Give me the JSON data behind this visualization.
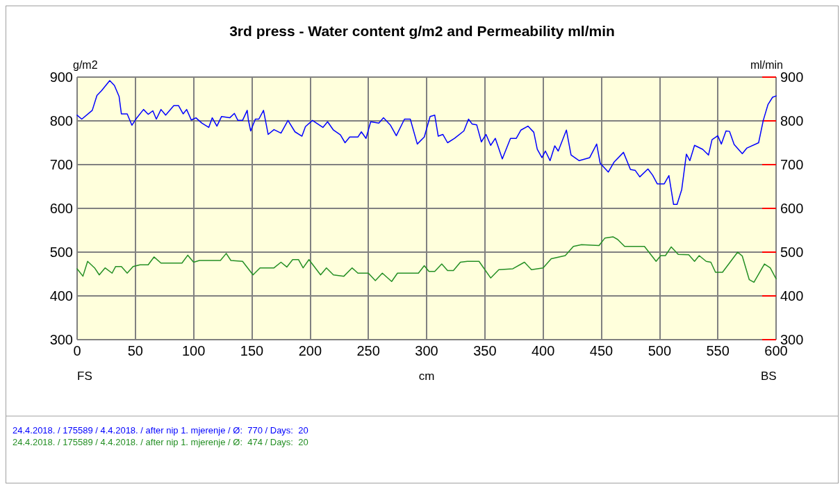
{
  "chart_data": {
    "type": "line",
    "title": "3rd press - Water content g/m2 and Permeability ml/min",
    "xlabel": "cm",
    "ylabel": "g/m2",
    "y2label": "ml/min",
    "annotations": [
      "FS",
      "BS"
    ],
    "xlim": [
      0,
      600
    ],
    "xticks": [
      0,
      50,
      100,
      150,
      200,
      250,
      300,
      350,
      400,
      450,
      500,
      550,
      600
    ],
    "ylim": [
      300,
      900
    ],
    "yticks": [
      300,
      400,
      500,
      600,
      700,
      800,
      900
    ],
    "y2lim": [
      300,
      900
    ],
    "y2ticks": [
      300,
      400,
      500,
      600,
      700,
      800,
      900
    ],
    "grid": true,
    "legend": "bottom",
    "marker": "none",
    "line_style": "solid",
    "series": [
      {
        "name": "24.4.2018. / 175589 / 4.4.2018. / after nip 1. mjerenje / Ø:  770 / Days:  20",
        "color": "#0000ff",
        "x": [
          0,
          4,
          13,
          17,
          21,
          28,
          32,
          36,
          38,
          43,
          47,
          51,
          57,
          61,
          65,
          68,
          72,
          76,
          83,
          87,
          91,
          94,
          98,
          102,
          107,
          113,
          116,
          120,
          124,
          131,
          135,
          138,
          142,
          146,
          147,
          149,
          153,
          156,
          160,
          164,
          169,
          175,
          181,
          187,
          193,
          196,
          202,
          211,
          215,
          220,
          226,
          230,
          234,
          241,
          244,
          248,
          252,
          259,
          263,
          269,
          274,
          281,
          286,
          292,
          298,
          303,
          307,
          310,
          314,
          318,
          324,
          332,
          336,
          339,
          343,
          347,
          351,
          355,
          359,
          365,
          372,
          377,
          381,
          387,
          392,
          395,
          399,
          402,
          406,
          410,
          413,
          420,
          424,
          431,
          440,
          446,
          449,
          456,
          461,
          469,
          475,
          479,
          483,
          490,
          494,
          498,
          504,
          508,
          512,
          515,
          519,
          523,
          526,
          530,
          537,
          542,
          545,
          550,
          553,
          557,
          560,
          564,
          571,
          575,
          585,
          589,
          593,
          597,
          600
        ],
        "values": [
          813,
          804,
          824,
          858,
          869,
          892,
          881,
          856,
          816,
          816,
          790,
          806,
          826,
          815,
          823,
          804,
          826,
          813,
          835,
          835,
          816,
          826,
          802,
          807,
          795,
          785,
          807,
          788,
          810,
          807,
          817,
          801,
          801,
          824,
          802,
          777,
          804,
          804,
          824,
          769,
          780,
          772,
          801,
          775,
          765,
          787,
          801,
          785,
          798,
          779,
          768,
          750,
          763,
          763,
          775,
          760,
          798,
          795,
          807,
          790,
          766,
          804,
          804,
          747,
          763,
          810,
          813,
          765,
          769,
          750,
          760,
          777,
          804,
          793,
          791,
          752,
          769,
          744,
          760,
          713,
          760,
          760,
          779,
          788,
          774,
          735,
          716,
          731,
          709,
          743,
          731,
          779,
          722,
          709,
          716,
          747,
          703,
          683,
          706,
          728,
          689,
          687,
          672,
          690,
          676,
          656,
          656,
          675,
          609,
          609,
          643,
          724,
          709,
          744,
          735,
          722,
          757,
          766,
          747,
          777,
          776,
          746,
          725,
          738,
          750,
          801,
          837,
          854,
          857
        ]
      },
      {
        "name": "24.4.2018. / 175589 / 4.4.2018. / after nip 1. mjerenje / Ø:  474 / Days:  20",
        "color": "#248f24",
        "x": [
          0,
          5,
          9,
          15,
          19,
          24,
          30,
          33,
          38,
          43,
          48,
          54,
          61,
          66,
          72,
          90,
          95,
          100,
          105,
          123,
          128,
          132,
          142,
          151,
          157,
          169,
          175,
          180,
          185,
          190,
          194,
          199,
          209,
          214,
          220,
          229,
          236,
          241,
          250,
          256,
          262,
          270,
          275,
          293,
          298,
          302,
          307,
          313,
          318,
          323,
          329,
          335,
          345,
          355,
          362,
          374,
          384,
          390,
          400,
          407,
          419,
          426,
          433,
          448,
          453,
          460,
          464,
          470,
          487,
          497,
          501,
          505,
          510,
          516,
          525,
          530,
          534,
          540,
          544,
          548,
          554,
          567,
          571,
          577,
          581,
          590,
          595,
          600
        ],
        "values": [
          462,
          445,
          479,
          464,
          448,
          464,
          452,
          467,
          467,
          452,
          467,
          471,
          471,
          489,
          475,
          475,
          493,
          477,
          481,
          481,
          497,
          481,
          479,
          448,
          464,
          464,
          477,
          466,
          483,
          483,
          464,
          483,
          448,
          464,
          448,
          445,
          464,
          452,
          452,
          435,
          452,
          433,
          452,
          452,
          469,
          456,
          456,
          473,
          458,
          458,
          477,
          479,
          479,
          441,
          460,
          462,
          477,
          460,
          464,
          485,
          492,
          513,
          517,
          515,
          532,
          535,
          529,
          513,
          513,
          479,
          492,
          492,
          512,
          495,
          494,
          479,
          492,
          479,
          477,
          454,
          454,
          500,
          491,
          437,
          431,
          473,
          464,
          439
        ]
      }
    ]
  }
}
